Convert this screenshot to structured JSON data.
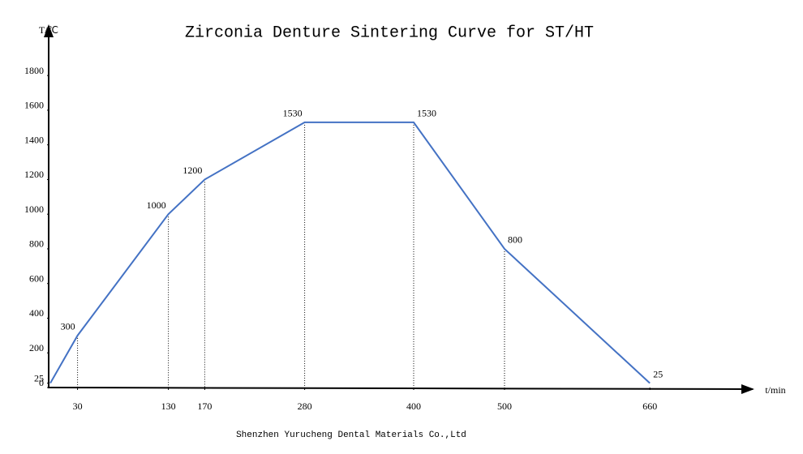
{
  "chart_data": {
    "type": "line",
    "title": "Zirconia Denture Sintering Curve for ST/HT",
    "y_label": "T/℃",
    "x_label": "t/min",
    "source": "Shenzhen Yurucheng Dental Materials Co.,Ltd",
    "x": [
      0,
      30,
      130,
      170,
      280,
      400,
      500,
      660
    ],
    "series": [
      {
        "color": "#4472c4",
        "values": [
          25,
          300,
          1000,
          1200,
          1530,
          1530,
          800,
          25
        ]
      }
    ],
    "xlim": [
      0,
      775
    ],
    "ylim": [
      0,
      2100
    ],
    "xticks": [
      30,
      130,
      170,
      280,
      400,
      500,
      660
    ],
    "yticks": [
      0,
      25,
      200,
      400,
      600,
      800,
      1000,
      1200,
      1400,
      1600,
      1800
    ],
    "grid": false
  }
}
